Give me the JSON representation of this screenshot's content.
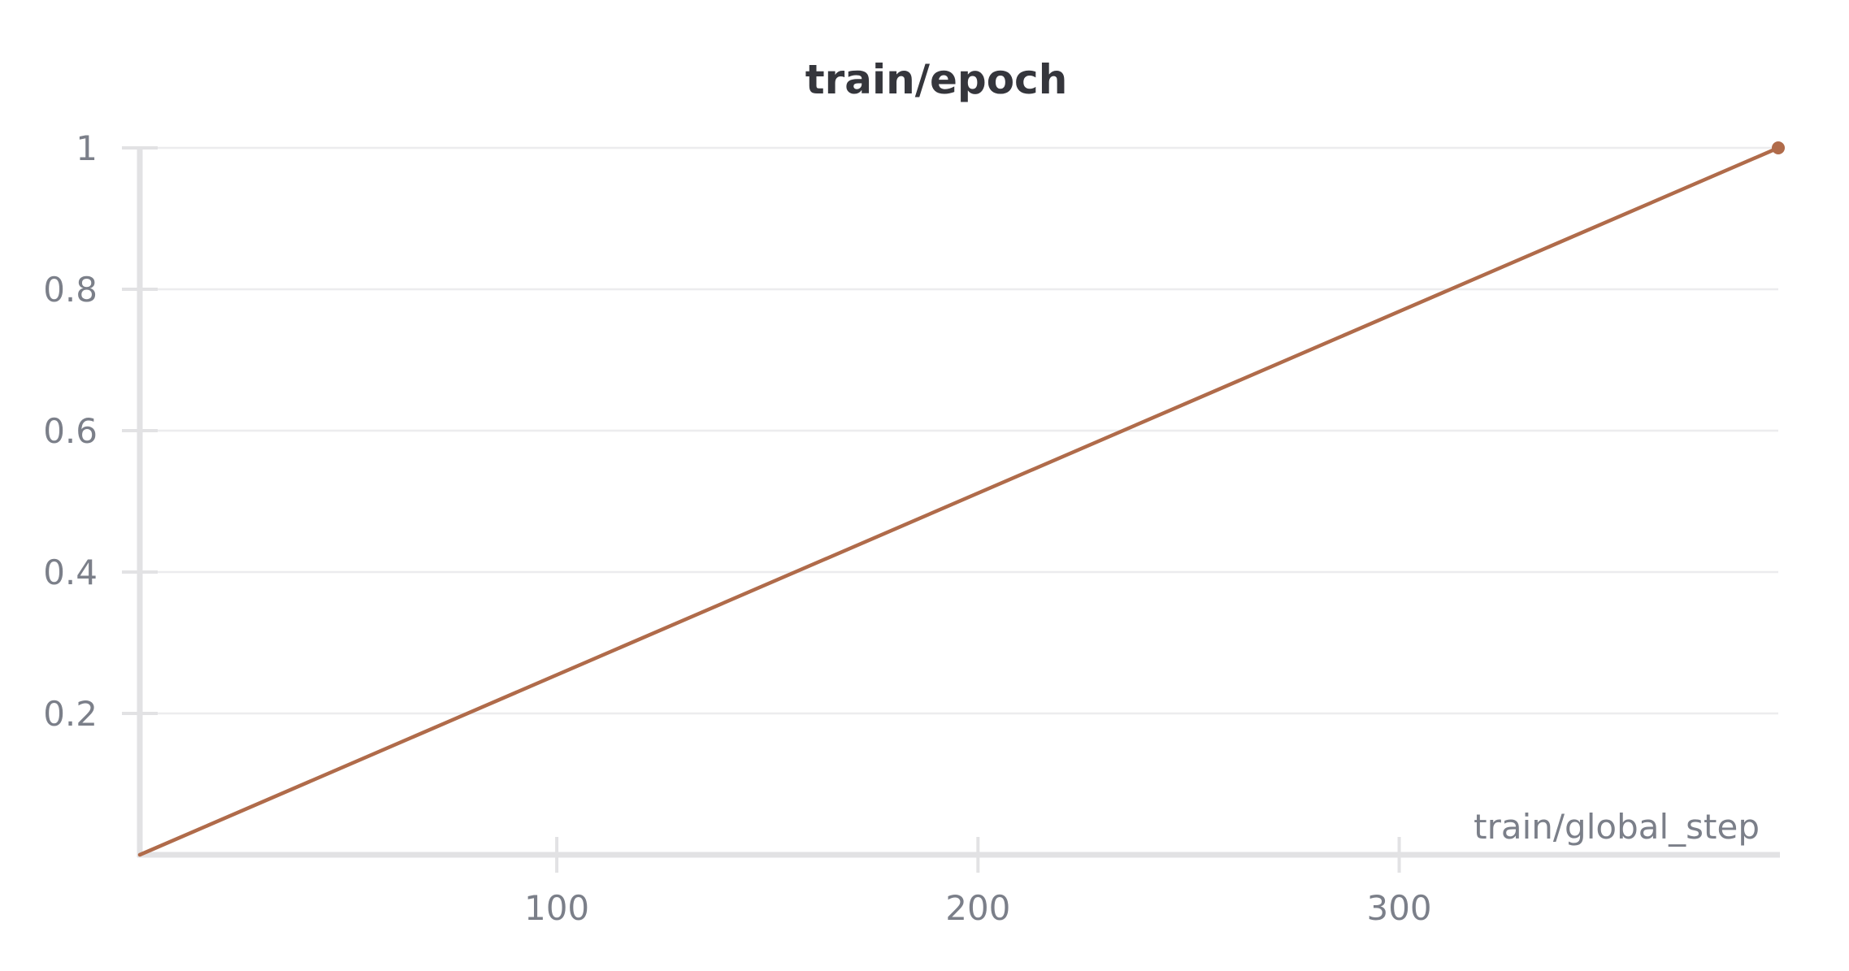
{
  "chart_data": {
    "type": "line",
    "title": "train/epoch",
    "xlabel": "train/global_step",
    "ylabel": "",
    "xlim": [
      1,
      390
    ],
    "ylim": [
      0,
      1
    ],
    "x_ticks": [
      100,
      200,
      300
    ],
    "x_tick_labels": [
      "100",
      "200",
      "300"
    ],
    "y_ticks": [
      0.2,
      0.4,
      0.6,
      0.8,
      1
    ],
    "y_tick_labels": [
      "0.2",
      "0.4",
      "0.6",
      "0.8",
      "1"
    ],
    "grid": true,
    "legend": "none",
    "series": [
      {
        "color": "#b06b4a",
        "x": [
          1,
          390
        ],
        "y": [
          0,
          1
        ]
      }
    ]
  }
}
